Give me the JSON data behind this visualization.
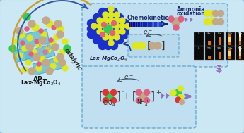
{
  "bg_color": "#cce8f4",
  "outer_border_color": "#88bbdd",
  "top_box_color": "#c0dff0",
  "top_box_border": "#6aabce",
  "bottom_box_color": "#c0dff0",
  "bottom_box_border": "#6aabce",
  "e_box_color": "#b8d8ec",
  "e_box_border": "#6aabce",
  "yellow_color": "#dde820",
  "blue_color": "#1a2fcc",
  "green_color": "#33cc55",
  "pink_color": "#e06080",
  "tan_color": "#c0a888",
  "red_color": "#dd3333",
  "teal_color": "#44aacc",
  "arrow_color": "#3355aa",
  "chevron_color": "#8877bb",
  "gold_arrow_color": "#c8a030",
  "dark_blue_arrow": "#1a3a8a",
  "chemokinetic_label": "Chemokinetic",
  "ammonia_label": "Ammonia",
  "oxidation_label": "oxidation"
}
